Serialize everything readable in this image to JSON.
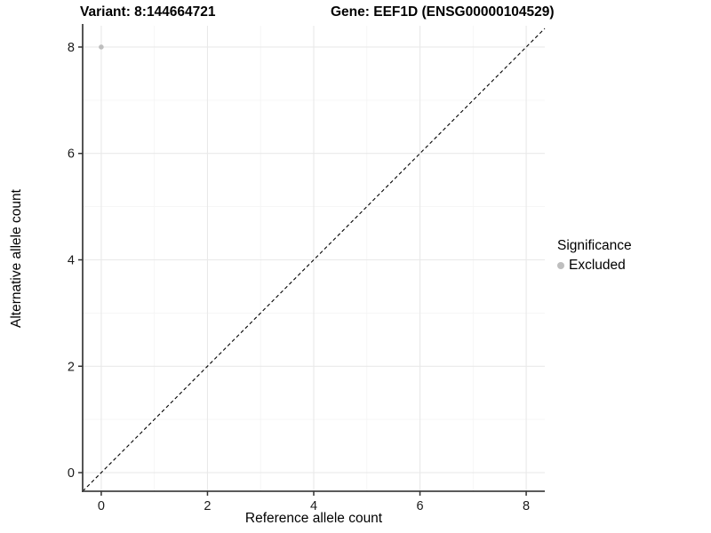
{
  "chart_data": {
    "type": "scatter",
    "title_left": "Variant: 8:144664721",
    "title_right": "Gene: EEF1D (ENSG00000104529)",
    "xlabel": "Reference allele count",
    "ylabel": "Alternative allele count",
    "xlim": [
      -0.35,
      8.35
    ],
    "ylim": [
      -0.35,
      8.4
    ],
    "xticks": [
      0,
      2,
      4,
      6,
      8
    ],
    "yticks": [
      0,
      2,
      4,
      6,
      8
    ],
    "minor_xticks": [
      1,
      3,
      5,
      7
    ],
    "minor_yticks": [
      1,
      3,
      5,
      7
    ],
    "grid": true,
    "abline": {
      "slope": 1,
      "intercept": 0,
      "style": "dashed",
      "color": "#000000"
    },
    "series": [
      {
        "name": "Excluded",
        "color": "#bebebe",
        "points": [
          {
            "x": 0,
            "y": 8
          }
        ]
      }
    ],
    "legend": {
      "title": "Significance",
      "position": "right",
      "items": [
        {
          "label": "Excluded",
          "color": "#bebebe"
        }
      ]
    },
    "colors": {
      "grid_major": "#e9e9e9",
      "grid_minor": "#f4f4f4",
      "axis_line": "#424242",
      "tick_mark": "#333333",
      "tick_label": "#1a1a1a",
      "point": "#bebebe"
    }
  }
}
